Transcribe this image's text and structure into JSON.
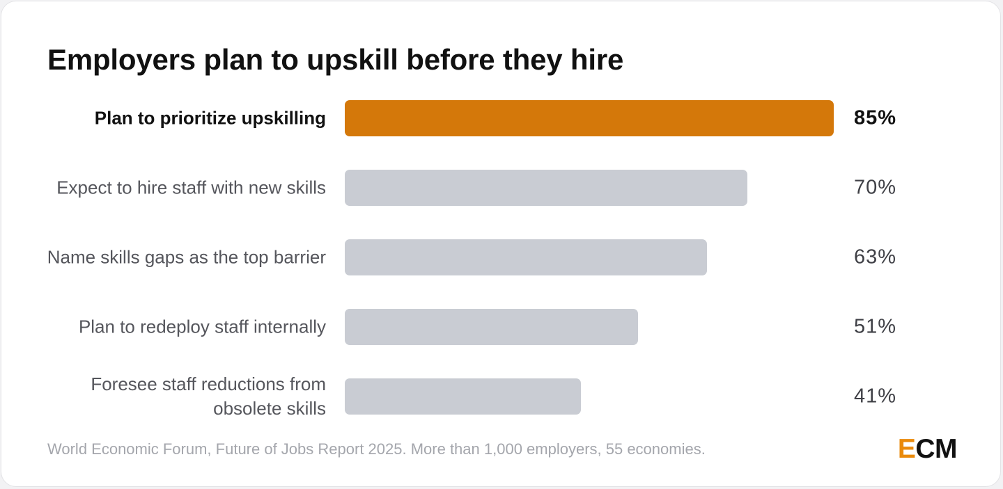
{
  "chart_data": {
    "type": "bar",
    "orientation": "horizontal",
    "title": "Employers plan to upskill before they hire",
    "categories": [
      "Plan to prioritize upskilling",
      "Expect to hire staff with new skills",
      "Name skills gaps as the top barrier",
      "Plan to redeploy staff internally",
      "Foresee staff reductions from obsolete skills"
    ],
    "values": [
      85,
      70,
      63,
      51,
      41
    ],
    "value_labels": [
      "85%",
      "70%",
      "63%",
      "51%",
      "41%"
    ],
    "unit": "%",
    "highlight_index": 0,
    "highlight_color": "#d4780a",
    "bar_color": "#c9ccd3",
    "xlim": [
      0,
      85
    ],
    "grid": false,
    "legend": "none"
  },
  "source": "World Economic Forum, Future of Jobs Report 2025. More than 1,000 employers, 55 economies.",
  "logo": {
    "accent": "E",
    "rest": "CM",
    "accent_color": "#ea8a0b"
  }
}
